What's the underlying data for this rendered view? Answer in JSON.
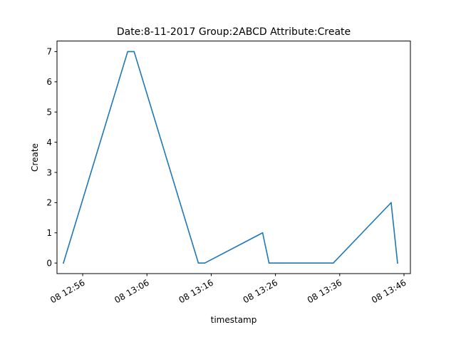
{
  "chart_data": {
    "type": "line",
    "title": "Date:8-11-2017  Group:2ABCD Attribute:Create",
    "xlabel": "timestamp",
    "ylabel": "Create",
    "xlim": [
      "2017-11-08 12:52",
      "2017-11-08 13:47"
    ],
    "ylim": [
      -0.35,
      7.35
    ],
    "x_ticks": [
      {
        "label": "08 12:56",
        "value": "2017-11-08 12:56"
      },
      {
        "label": "08 13:06",
        "value": "2017-11-08 13:06"
      },
      {
        "label": "08 13:16",
        "value": "2017-11-08 13:16"
      },
      {
        "label": "08 13:26",
        "value": "2017-11-08 13:26"
      },
      {
        "label": "08 13:36",
        "value": "2017-11-08 13:36"
      },
      {
        "label": "08 13:46",
        "value": "2017-11-08 13:46"
      }
    ],
    "y_ticks": [
      "0",
      "1",
      "2",
      "3",
      "4",
      "5",
      "6",
      "7"
    ],
    "grid": false,
    "series": [
      {
        "color": "#1f77b4",
        "x": [
          "2017-11-08 12:53",
          "2017-11-08 13:03",
          "2017-11-08 13:04",
          "2017-11-08 13:14",
          "2017-11-08 13:15",
          "2017-11-08 13:24",
          "2017-11-08 13:25",
          "2017-11-08 13:34",
          "2017-11-08 13:35",
          "2017-11-08 13:44",
          "2017-11-08 13:45"
        ],
        "y": [
          0,
          7,
          7,
          0,
          0,
          1,
          0,
          0,
          0,
          2,
          0
        ]
      }
    ]
  }
}
